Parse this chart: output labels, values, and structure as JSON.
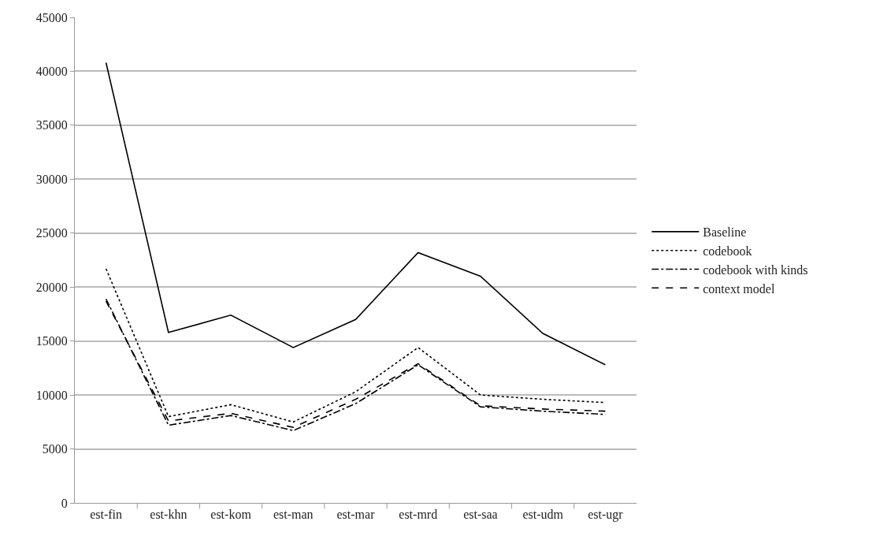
{
  "chart_data": {
    "type": "line",
    "categories": [
      "est-fin",
      "est-khn",
      "est-kom",
      "est-man",
      "est-mar",
      "est-mrd",
      "est-saa",
      "est-udm",
      "est-ugr"
    ],
    "series": [
      {
        "name": "Baseline",
        "color": "#000000",
        "line_style": "solid",
        "values": [
          40800,
          15800,
          17400,
          14400,
          17000,
          23200,
          21000,
          15700,
          12800
        ]
      },
      {
        "name": "codebook",
        "color": "#000000",
        "line_style": "dotted",
        "values": [
          21700,
          8000,
          9100,
          7500,
          10300,
          14400,
          10000,
          9600,
          9300
        ]
      },
      {
        "name": "codebook with kinds",
        "color": "#000000",
        "line_style": "dashdot",
        "values": [
          18900,
          7200,
          8100,
          6700,
          9200,
          12800,
          8900,
          8500,
          8200
        ]
      },
      {
        "name": "context model",
        "color": "#000000",
        "line_style": "dashed",
        "values": [
          18700,
          7600,
          8300,
          7000,
          9600,
          12900,
          9000,
          8700,
          8500
        ]
      }
    ],
    "ylim": [
      0,
      45000
    ],
    "yticks": [
      0,
      5000,
      10000,
      15000,
      20000,
      25000,
      30000,
      35000,
      40000,
      45000
    ],
    "grid": "y",
    "legend": "right",
    "marker": "none"
  }
}
